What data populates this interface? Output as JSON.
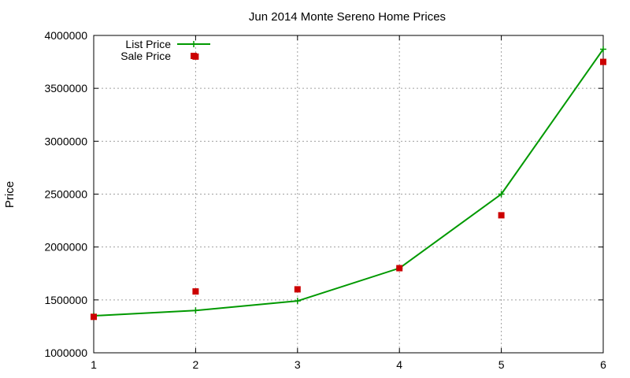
{
  "chart_data": {
    "type": "line",
    "title": "Jun 2014 Monte Sereno Home Prices",
    "xlabel": "",
    "ylabel": "Price",
    "xlim": [
      1,
      6
    ],
    "ylim": [
      1000000,
      4000000
    ],
    "x_ticks": [
      "1",
      "2",
      "3",
      "4",
      "5",
      "6"
    ],
    "y_ticks": [
      "1000000",
      "1500000",
      "2000000",
      "2500000",
      "3000000",
      "3500000",
      "4000000"
    ],
    "grid": true,
    "legend_position": "top-left",
    "series": [
      {
        "name": "List Price",
        "style": "line-with-plus-markers",
        "color": "#009900",
        "x": [
          1,
          2,
          3,
          4,
          5,
          6
        ],
        "y": [
          1350000,
          1400000,
          1490000,
          1800000,
          2500000,
          3870000
        ]
      },
      {
        "name": "Sale Price",
        "style": "square-markers",
        "color": "#cc0000",
        "x": [
          1,
          2,
          2,
          3,
          4,
          5,
          6
        ],
        "y": [
          1340000,
          3800000,
          1580000,
          1600000,
          1800000,
          2300000,
          3750000
        ]
      }
    ]
  }
}
